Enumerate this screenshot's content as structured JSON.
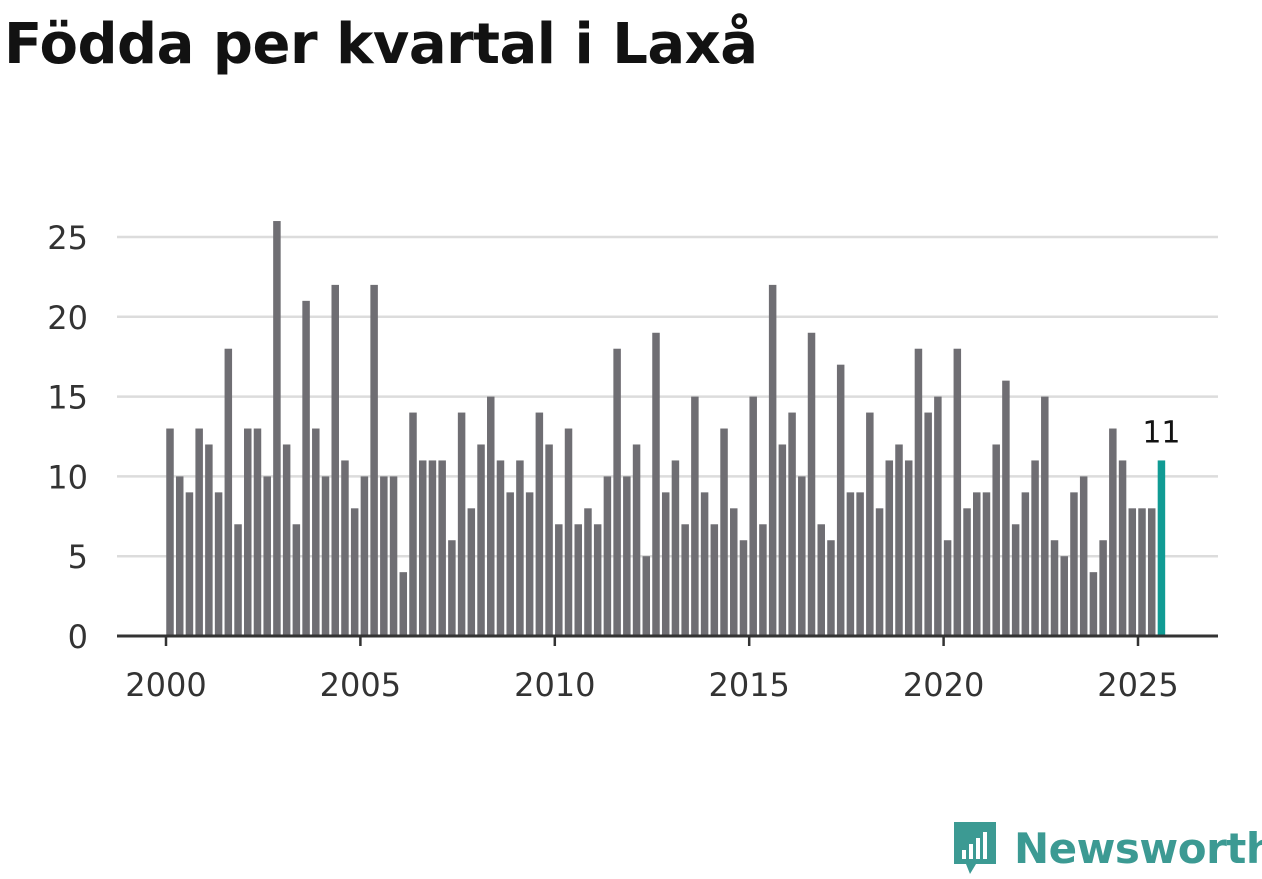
{
  "colors": {
    "bar": "#6f6e73",
    "highlight": "#109b94",
    "grid": "#dcdcdc",
    "axis": "#333333",
    "brand": "#3c9a93"
  },
  "brand": {
    "name": "Newsworthy",
    "icon": "newsworthy-logo-icon"
  },
  "chart_data": {
    "type": "bar",
    "title": "Födda per kvartal i Laxå",
    "xlabel": "",
    "ylabel": "",
    "ylim": [
      0,
      27
    ],
    "yticks": [
      0,
      5,
      10,
      15,
      20,
      25
    ],
    "xticks": [
      2000,
      2005,
      2010,
      2015,
      2020,
      2025
    ],
    "x_start": 2000,
    "period": "quarter",
    "grid": true,
    "values": [
      13,
      10,
      9,
      13,
      12,
      9,
      18,
      7,
      13,
      13,
      10,
      26,
      12,
      7,
      21,
      13,
      10,
      22,
      11,
      8,
      10,
      22,
      10,
      10,
      4,
      14,
      11,
      11,
      11,
      6,
      14,
      8,
      12,
      15,
      11,
      9,
      11,
      9,
      14,
      12,
      7,
      13,
      7,
      8,
      7,
      10,
      18,
      10,
      12,
      5,
      19,
      9,
      11,
      7,
      15,
      9,
      7,
      13,
      8,
      6,
      15,
      7,
      22,
      12,
      14,
      10,
      19,
      7,
      6,
      17,
      9,
      9,
      14,
      8,
      11,
      12,
      11,
      18,
      14,
      15,
      6,
      18,
      8,
      9,
      9,
      12,
      16,
      7,
      9,
      11,
      15,
      6,
      5,
      9,
      10,
      4,
      6,
      13,
      11,
      8,
      8,
      8,
      11
    ],
    "highlight_index": 102,
    "highlight_label": "11"
  }
}
